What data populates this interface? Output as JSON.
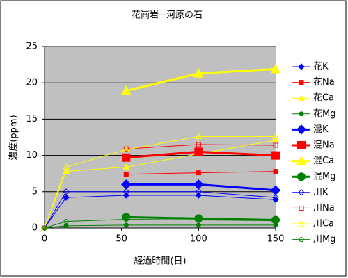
{
  "chart_data": {
    "type": "line",
    "title": "花崗岩−河原の石",
    "x_label": "経過時間(日)",
    "y_label": "濃度(ppm)",
    "x": [
      0,
      14,
      53,
      100,
      150
    ],
    "xlim": [
      0,
      150
    ],
    "xticks": [
      0,
      50,
      100,
      150
    ],
    "ylim": [
      0,
      25
    ],
    "yticks": [
      0,
      5,
      10,
      15,
      20,
      25
    ],
    "grid": true,
    "legend": "right",
    "series": [
      {
        "name": "花K",
        "color": "#0000ff",
        "marker": "diamond",
        "size": "small",
        "filled": true,
        "values": [
          0,
          4.2,
          4.5,
          4.5,
          3.9
        ]
      },
      {
        "name": "花Na",
        "color": "#ff0000",
        "marker": "square",
        "size": "small",
        "filled": true,
        "values": [
          null,
          null,
          7.4,
          7.6,
          7.8
        ]
      },
      {
        "name": "花Ca",
        "color": "#ffff00",
        "marker": "triangle",
        "size": "small",
        "filled": true,
        "values": [
          0,
          7.8,
          8.4,
          10.2,
          12.1
        ]
      },
      {
        "name": "花Mg",
        "color": "#008000",
        "marker": "circle",
        "size": "small",
        "filled": true,
        "values": [
          0,
          0.3,
          0.4,
          0.4,
          0.4
        ]
      },
      {
        "name": "混K",
        "color": "#0000ff",
        "marker": "diamond",
        "size": "large",
        "filled": true,
        "values": [
          null,
          null,
          6.0,
          6.0,
          5.2
        ]
      },
      {
        "name": "混Na",
        "color": "#ff0000",
        "marker": "square",
        "size": "large",
        "filled": true,
        "values": [
          null,
          null,
          9.7,
          10.5,
          10.0
        ]
      },
      {
        "name": "混Ca",
        "color": "#ffff00",
        "marker": "triangle",
        "size": "large",
        "filled": true,
        "values": [
          null,
          null,
          18.9,
          21.3,
          21.9
        ]
      },
      {
        "name": "混Mg",
        "color": "#008000",
        "marker": "circle",
        "size": "large",
        "filled": true,
        "values": [
          null,
          null,
          1.5,
          1.3,
          1.1
        ]
      },
      {
        "name": "川K",
        "color": "#0000ff",
        "marker": "diamond",
        "size": "small",
        "filled": false,
        "values": [
          0,
          5.0,
          5.0,
          5.0,
          4.2
        ]
      },
      {
        "name": "川Na",
        "color": "#ff0000",
        "marker": "square",
        "size": "small",
        "filled": false,
        "values": [
          0,
          null,
          10.9,
          11.5,
          11.4
        ]
      },
      {
        "name": "川Ca",
        "color": "#ffff00",
        "marker": "triangle",
        "size": "small",
        "filled": false,
        "values": [
          0,
          8.4,
          10.8,
          12.6,
          12.6
        ]
      },
      {
        "name": "川Mg",
        "color": "#008000",
        "marker": "circle",
        "size": "small",
        "filled": false,
        "values": [
          0,
          0.9,
          1.2,
          1.1,
          1.0
        ]
      }
    ]
  }
}
